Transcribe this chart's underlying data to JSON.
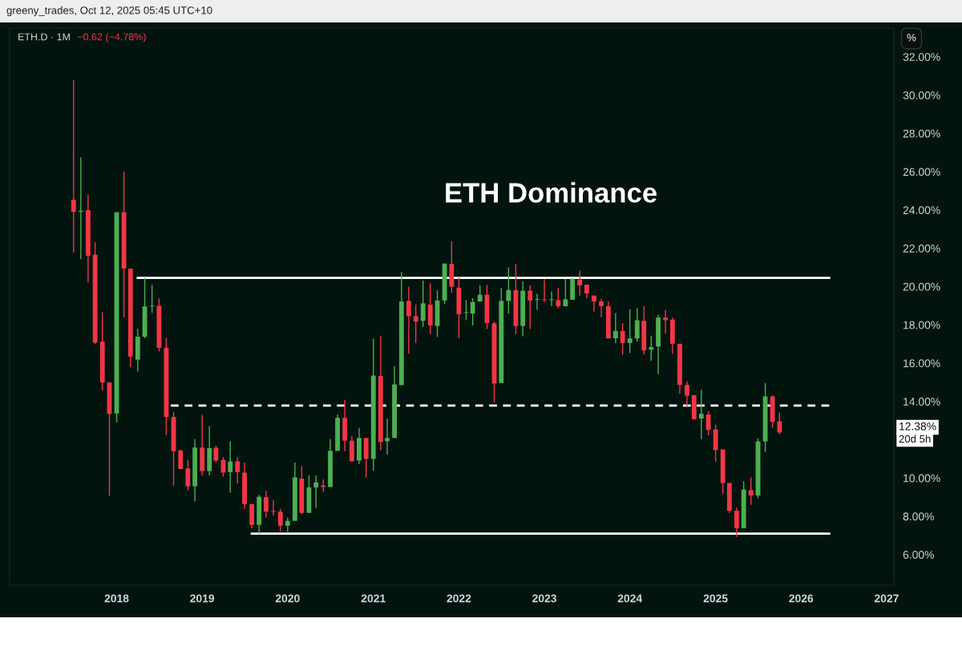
{
  "chart_data": {
    "type": "candlestick",
    "title": "ETH Dominance",
    "subtitle": "ETH.D · 1M",
    "annotations": [
      "greeny_trades, Oct 12, 2025 05:45 UTC+10",
      "−0.62 (−4.78%)",
      "%",
      "12.38%",
      "20d 5h"
    ],
    "x": [
      "2017-07",
      "2017-08",
      "2017-09",
      "2017-10",
      "2017-11",
      "2017-12",
      "2018-01",
      "2018-02",
      "2018-03",
      "2018-04",
      "2018-05",
      "2018-06",
      "2018-07",
      "2018-08",
      "2018-09",
      "2018-10",
      "2018-11",
      "2018-12",
      "2019-01",
      "2019-02",
      "2019-03",
      "2019-04",
      "2019-05",
      "2019-06",
      "2019-07",
      "2019-08",
      "2019-09",
      "2019-10",
      "2019-11",
      "2019-12",
      "2020-01",
      "2020-02",
      "2020-03",
      "2020-04",
      "2020-05",
      "2020-06",
      "2020-07",
      "2020-08",
      "2020-09",
      "2020-10",
      "2020-11",
      "2020-12",
      "2021-01",
      "2021-02",
      "2021-03",
      "2021-04",
      "2021-05",
      "2021-06",
      "2021-07",
      "2021-08",
      "2021-09",
      "2021-10",
      "2021-11",
      "2021-12",
      "2022-01",
      "2022-02",
      "2022-03",
      "2022-04",
      "2022-05",
      "2022-06",
      "2022-07",
      "2022-08",
      "2022-09",
      "2022-10",
      "2022-11",
      "2022-12",
      "2023-01",
      "2023-02",
      "2023-03",
      "2023-04",
      "2023-05",
      "2023-06",
      "2023-07",
      "2023-08",
      "2023-09",
      "2023-10",
      "2023-11",
      "2023-12",
      "2024-01",
      "2024-02",
      "2024-03",
      "2024-04",
      "2024-05",
      "2024-06",
      "2024-07",
      "2024-08",
      "2024-09",
      "2024-10",
      "2024-11",
      "2024-12",
      "2025-01",
      "2025-02",
      "2025-03",
      "2025-04",
      "2025-05",
      "2025-06",
      "2025-07",
      "2025-08",
      "2025-09",
      "2025-10"
    ],
    "ohlc": [
      [
        24.53,
        30.79,
        21.78,
        23.9
      ],
      [
        23.9,
        26.75,
        21.43,
        23.96
      ],
      [
        23.99,
        24.78,
        20.23,
        21.61
      ],
      [
        21.66,
        22.31,
        17.0,
        17.07
      ],
      [
        17.12,
        18.66,
        14.57,
        14.99
      ],
      [
        14.99,
        15.0,
        9.08,
        13.35
      ],
      [
        13.37,
        23.88,
        12.9,
        23.88
      ],
      [
        23.88,
        26.0,
        18.39,
        20.94
      ],
      [
        20.94,
        20.94,
        15.79,
        16.34
      ],
      [
        16.18,
        17.79,
        15.56,
        17.38
      ],
      [
        17.38,
        20.46,
        17.3,
        18.96
      ],
      [
        18.96,
        20.09,
        18.63,
        19.0
      ],
      [
        19.0,
        19.38,
        16.61,
        16.8
      ],
      [
        16.8,
        17.32,
        12.25,
        13.19
      ],
      [
        13.19,
        13.45,
        9.6,
        11.4
      ],
      [
        11.45,
        11.45,
        10.47,
        10.47
      ],
      [
        10.5,
        10.95,
        9.35,
        9.57
      ],
      [
        9.57,
        12.04,
        8.78,
        11.59
      ],
      [
        11.59,
        13.3,
        10.13,
        10.36
      ],
      [
        10.36,
        12.71,
        10.13,
        11.56
      ],
      [
        11.58,
        11.67,
        10.81,
        10.91
      ],
      [
        10.95,
        11.09,
        10.07,
        10.28
      ],
      [
        10.31,
        11.92,
        9.23,
        10.87
      ],
      [
        10.87,
        11.09,
        9.72,
        10.31
      ],
      [
        10.28,
        10.81,
        8.39,
        8.64
      ],
      [
        8.64,
        8.64,
        7.37,
        7.55
      ],
      [
        7.55,
        9.12,
        7.09,
        9.02
      ],
      [
        9.0,
        9.33,
        7.93,
        8.24
      ],
      [
        8.28,
        8.84,
        8.04,
        8.24
      ],
      [
        8.24,
        8.39,
        7.23,
        7.51
      ],
      [
        7.51,
        7.93,
        7.2,
        7.76
      ],
      [
        7.76,
        10.81,
        7.76,
        10.03
      ],
      [
        9.97,
        10.62,
        8.11,
        8.18
      ],
      [
        8.18,
        10.14,
        8.18,
        9.51
      ],
      [
        9.51,
        10.14,
        8.43,
        9.77
      ],
      [
        9.61,
        9.93,
        9.27,
        9.53
      ],
      [
        9.53,
        12.03,
        9.53,
        11.42
      ],
      [
        11.42,
        13.32,
        11.42,
        13.14
      ],
      [
        13.14,
        14.08,
        11.4,
        11.95
      ],
      [
        11.95,
        12.2,
        10.87,
        10.87
      ],
      [
        10.91,
        12.62,
        10.72,
        12.09
      ],
      [
        12.09,
        12.09,
        10.03,
        11.0
      ],
      [
        11.0,
        17.27,
        10.39,
        15.35
      ],
      [
        15.33,
        17.43,
        11.46,
        11.88
      ],
      [
        11.92,
        13.1,
        11.23,
        12.09
      ],
      [
        12.09,
        15.84,
        12.09,
        14.89
      ],
      [
        14.85,
        20.76,
        14.85,
        19.22
      ],
      [
        19.25,
        19.99,
        16.5,
        18.45
      ],
      [
        18.45,
        19.06,
        17.05,
        18.17
      ],
      [
        18.21,
        20.31,
        17.89,
        19.12
      ],
      [
        19.06,
        20.17,
        17.52,
        17.97
      ],
      [
        17.94,
        19.81,
        17.36,
        19.27
      ],
      [
        19.27,
        21.2,
        19.08,
        21.2
      ],
      [
        21.18,
        22.36,
        19.67,
        19.99
      ],
      [
        19.94,
        20.48,
        17.3,
        18.55
      ],
      [
        18.62,
        19.29,
        18.24,
        18.66
      ],
      [
        18.59,
        19.39,
        17.96,
        19.19
      ],
      [
        19.22,
        20.06,
        19.22,
        19.57
      ],
      [
        19.57,
        20.09,
        17.78,
        18.1
      ],
      [
        18.08,
        18.17,
        13.94,
        14.93
      ],
      [
        14.96,
        19.92,
        14.96,
        19.25
      ],
      [
        19.25,
        21.0,
        18.59,
        19.82
      ],
      [
        19.81,
        21.18,
        17.52,
        17.94
      ],
      [
        17.94,
        20.27,
        17.4,
        19.78
      ],
      [
        19.78,
        20.06,
        17.79,
        19.27
      ],
      [
        19.31,
        19.62,
        18.78,
        19.35
      ],
      [
        19.33,
        20.38,
        19.19,
        19.29
      ],
      [
        19.29,
        19.75,
        18.97,
        19.33
      ],
      [
        19.29,
        19.92,
        18.87,
        18.97
      ],
      [
        18.97,
        20.41,
        18.97,
        19.33
      ],
      [
        19.31,
        20.41,
        19.31,
        20.41
      ],
      [
        20.36,
        20.83,
        19.53,
        20.06
      ],
      [
        20.1,
        20.1,
        19.39,
        19.64
      ],
      [
        19.53,
        19.53,
        18.69,
        19.22
      ],
      [
        19.22,
        19.36,
        18.41,
        18.98
      ],
      [
        18.98,
        19.22,
        17.29,
        17.29
      ],
      [
        17.3,
        18.62,
        17.05,
        17.68
      ],
      [
        17.68,
        18.08,
        16.44,
        17.05
      ],
      [
        17.05,
        18.81,
        16.53,
        17.29
      ],
      [
        17.29,
        18.87,
        17.12,
        18.24
      ],
      [
        18.21,
        18.97,
        16.45,
        16.67
      ],
      [
        16.7,
        17.43,
        16.12,
        16.84
      ],
      [
        16.87,
        18.52,
        15.42,
        18.38
      ],
      [
        18.38,
        18.78,
        17.54,
        18.24
      ],
      [
        18.27,
        18.38,
        16.49,
        17.01
      ],
      [
        17.01,
        17.01,
        14.4,
        14.86
      ],
      [
        14.86,
        15.03,
        13.7,
        14.3
      ],
      [
        14.33,
        14.33,
        13.07,
        13.07
      ],
      [
        13.11,
        14.61,
        12.03,
        13.35
      ],
      [
        13.32,
        13.49,
        12.23,
        12.51
      ],
      [
        12.54,
        12.79,
        10.86,
        11.46
      ],
      [
        11.49,
        11.49,
        9.16,
        9.74
      ],
      [
        9.74,
        9.74,
        8.18,
        8.29
      ],
      [
        8.29,
        8.46,
        6.92,
        7.38
      ],
      [
        7.38,
        9.83,
        7.38,
        9.4
      ],
      [
        9.37,
        10.03,
        8.6,
        9.09
      ],
      [
        9.09,
        12.07,
        8.95,
        11.91
      ],
      [
        11.91,
        14.96,
        11.37,
        14.26
      ],
      [
        14.26,
        14.33,
        12.62,
        12.93
      ],
      [
        12.96,
        13.42,
        12.3,
        12.38
      ]
    ],
    "colors": [
      "#f23645",
      "#4caf50",
      "#f23645",
      "#f23645",
      "#f23645",
      "#f23645",
      "#4caf50",
      "#f23645",
      "#f23645",
      "#4caf50",
      "#4caf50",
      "#4caf50",
      "#f23645",
      "#f23645",
      "#f23645",
      "#f23645",
      "#f23645",
      "#4caf50",
      "#f23645",
      "#4caf50",
      "#f23645",
      "#f23645",
      "#4caf50",
      "#f23645",
      "#f23645",
      "#f23645",
      "#4caf50",
      "#f23645",
      "#f23645",
      "#f23645",
      "#4caf50",
      "#4caf50",
      "#f23645",
      "#4caf50",
      "#4caf50",
      "#f23645",
      "#4caf50",
      "#4caf50",
      "#f23645",
      "#f23645",
      "#4caf50",
      "#f23645",
      "#4caf50",
      "#f23645",
      "#4caf50",
      "#4caf50",
      "#4caf50",
      "#f23645",
      "#f23645",
      "#4caf50",
      "#f23645",
      "#4caf50",
      "#4caf50",
      "#f23645",
      "#f23645",
      "#4caf50",
      "#4caf50",
      "#4caf50",
      "#f23645",
      "#f23645",
      "#4caf50",
      "#4caf50",
      "#f23645",
      "#4caf50",
      "#f23645",
      "#4caf50",
      "#f23645",
      "#4caf50",
      "#f23645",
      "#4caf50",
      "#4caf50",
      "#f23645",
      "#f23645",
      "#f23645",
      "#f23645",
      "#f23645",
      "#4caf50",
      "#f23645",
      "#4caf50",
      "#4caf50",
      "#f23645",
      "#4caf50",
      "#4caf50",
      "#f23645",
      "#f23645",
      "#f23645",
      "#f23645",
      "#f23645",
      "#4caf50",
      "#f23645",
      "#f23645",
      "#f23645",
      "#f23645",
      "#f23645",
      "#4caf50",
      "#f23645",
      "#4caf50",
      "#4caf50",
      "#f23645",
      "#f23645"
    ],
    "series": [
      {
        "type": "line",
        "x": [
          "2018-04",
          "2026-05"
        ],
        "values": [
          20.45,
          20.45
        ],
        "color": "#ffffff",
        "line_style": "solid"
      },
      {
        "type": "line",
        "x": [
          "2018-08-20",
          "2026-05"
        ],
        "values": [
          13.78,
          13.78
        ],
        "color": "#ffffff",
        "line_style": "dashed"
      },
      {
        "type": "line",
        "x": [
          "2019-08",
          "2026-05"
        ],
        "values": [
          7.1,
          7.1
        ],
        "color": "#ffffff",
        "line_style": "solid"
      }
    ],
    "xlim": [
      "2016-10",
      "2027-02"
    ],
    "xticks": [
      {
        "value": "2018",
        "label": "2018"
      },
      {
        "value": "2019",
        "label": "2019"
      },
      {
        "value": "2020",
        "label": "2020"
      },
      {
        "value": "2021",
        "label": "2021"
      },
      {
        "value": "2022",
        "label": "2022"
      },
      {
        "value": "2023",
        "label": "2023"
      },
      {
        "value": "2024",
        "label": "2024"
      },
      {
        "value": "2025",
        "label": "2025"
      },
      {
        "value": "2026",
        "label": "2026"
      },
      {
        "value": "2027",
        "label": "2027"
      }
    ],
    "ylim": [
      4.4,
      33.5
    ],
    "yticks": [
      {
        "value": 6,
        "label": "6.00%"
      },
      {
        "value": 8,
        "label": "8.00%"
      },
      {
        "value": 10,
        "label": "10.00%"
      },
      {
        "value": 14,
        "label": "14.00%"
      },
      {
        "value": 16,
        "label": "16.00%"
      },
      {
        "value": 18,
        "label": "18.00%"
      },
      {
        "value": 20,
        "label": "20.00%"
      },
      {
        "value": 22,
        "label": "22.00%"
      },
      {
        "value": 24,
        "label": "24.00%"
      },
      {
        "value": 26,
        "label": "26.00%"
      },
      {
        "value": 28,
        "label": "28.00%"
      },
      {
        "value": 30,
        "label": "30.00%"
      },
      {
        "value": 32,
        "label": "32.00%"
      }
    ]
  }
}
